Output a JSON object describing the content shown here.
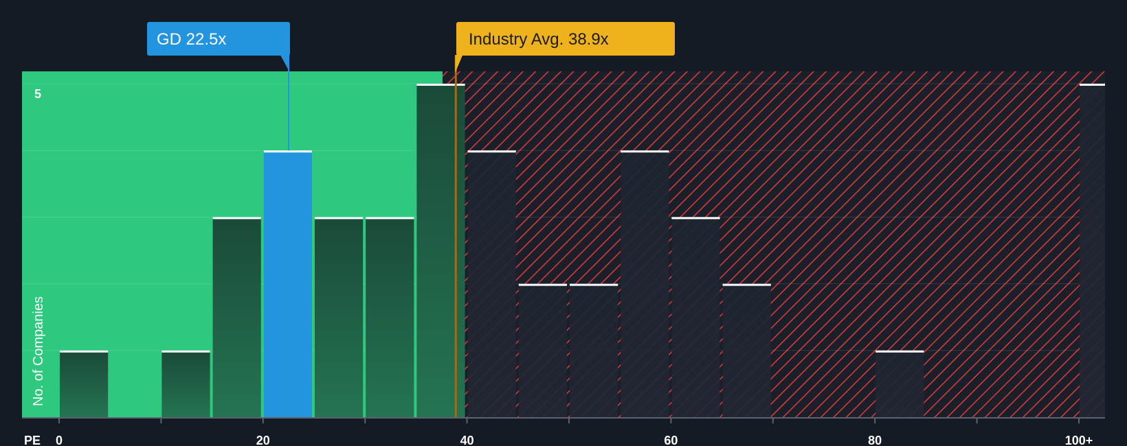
{
  "chart_data": {
    "type": "bar",
    "title": "",
    "xlabel": "PE",
    "ylabel": "No. of Companies",
    "x_ticks": [
      "0",
      "20",
      "40",
      "60",
      "80",
      "100+"
    ],
    "y_ticks": [
      "5"
    ],
    "xlim": [
      0,
      100
    ],
    "ylim": [
      0,
      5
    ],
    "bins": [
      {
        "start": 0,
        "end": 5,
        "count": 1
      },
      {
        "start": 10,
        "end": 15,
        "count": 1
      },
      {
        "start": 15,
        "end": 20,
        "count": 3
      },
      {
        "start": 20,
        "end": 25,
        "count": 4,
        "highlight": true
      },
      {
        "start": 25,
        "end": 30,
        "count": 3
      },
      {
        "start": 30,
        "end": 35,
        "count": 3
      },
      {
        "start": 35,
        "end": 40,
        "count": 5
      },
      {
        "start": 40,
        "end": 45,
        "count": 4
      },
      {
        "start": 45,
        "end": 50,
        "count": 2
      },
      {
        "start": 50,
        "end": 55,
        "count": 2
      },
      {
        "start": 55,
        "end": 60,
        "count": 4
      },
      {
        "start": 60,
        "end": 65,
        "count": 3
      },
      {
        "start": 65,
        "end": 70,
        "count": 2
      },
      {
        "start": 80,
        "end": 85,
        "count": 1
      },
      {
        "start": 100,
        "end": 105,
        "count": 5
      }
    ],
    "company": {
      "label": "GD 22.5x",
      "value": 22.5
    },
    "industry_avg": {
      "label": "Industry Avg. 38.9x",
      "value": 38.9
    },
    "fair_zone_end": 37.6
  },
  "colors": {
    "background": "#151b24",
    "fair_zone": "#2ec97e",
    "overvalued_stripe": "#d63b3b",
    "bar_fair": "#1f5d46",
    "bar_over": "#1e222c",
    "highlight_bar": "#2394e0",
    "avg_callout": "#eeb21c",
    "avg_line": "#a06c1b"
  }
}
